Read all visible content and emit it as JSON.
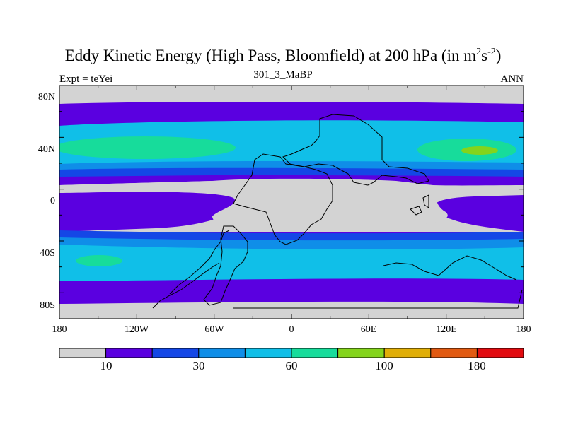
{
  "title": "Eddy Kinetic Energy (High Pass, Bloomfield) at 200 hPa (in m",
  "title_sup1": "2",
  "title_s": "s",
  "title_sup2": "-2",
  "title_close": ")",
  "subtitle": "301_3_MaBP",
  "left_label": "Expt = teYei",
  "right_label": "ANN",
  "y_ticks": [
    "80N",
    "40N",
    "0",
    "40S",
    "80S"
  ],
  "x_ticks": [
    "180",
    "120W",
    "60W",
    "0",
    "60E",
    "120E",
    "180"
  ],
  "colorbar": {
    "colors": [
      "#d3d3d3",
      "#5a00e0",
      "#1447e6",
      "#0f8ee8",
      "#10bfe8",
      "#17dc9b",
      "#84d41c",
      "#e0ae07",
      "#e15a12",
      "#e20b10"
    ],
    "labels": [
      "10",
      "30",
      "60",
      "100",
      "180"
    ]
  },
  "map": {
    "lat_range": [
      -90,
      90
    ],
    "lon_range": [
      -180,
      180
    ],
    "bands": [
      {
        "level": 0,
        "color": "#d3d3d3"
      },
      {
        "level": 1,
        "color": "#5a00e0"
      },
      {
        "level": 2,
        "color": "#1447e6"
      },
      {
        "level": 3,
        "color": "#0f8ee8"
      },
      {
        "level": 4,
        "color": "#10bfe8"
      },
      {
        "level": 5,
        "color": "#17dc9b"
      },
      {
        "level": 6,
        "color": "#84d41c"
      }
    ],
    "coast_color": "#000000"
  }
}
